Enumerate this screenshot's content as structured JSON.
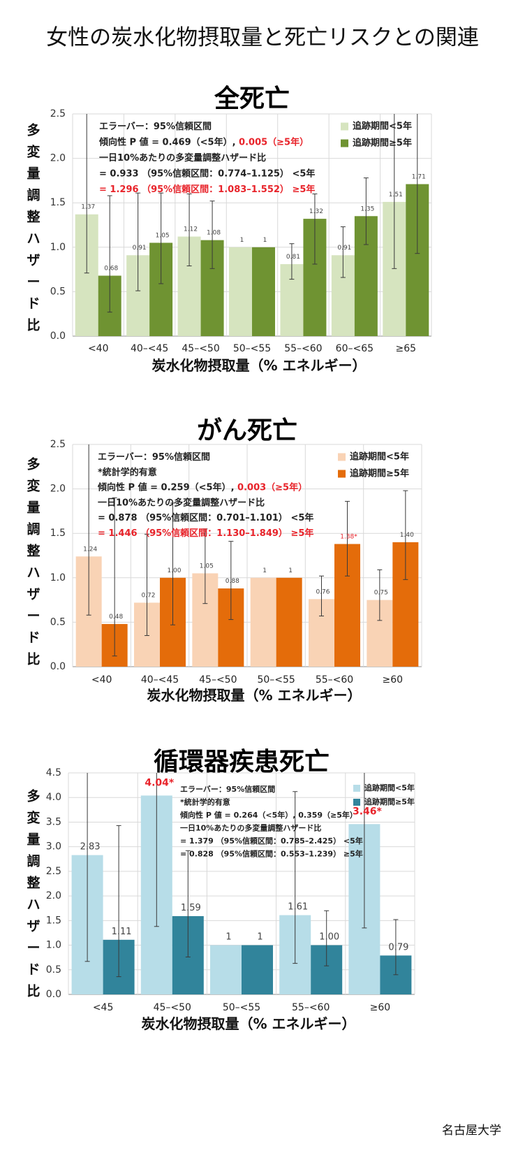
{
  "page_title": "女性の炭水化物摂取量と死亡リスクとの関連",
  "credit": "名古屋大学",
  "chart_data": [
    {
      "type": "bar",
      "title": "全死亡",
      "ylabel": "多変量調整ハザード比",
      "xlabel": "炭水化物摂取量（% エネルギー）",
      "ylim": [
        0,
        2.5
      ],
      "yticks": [
        "0.0",
        "0.5",
        "1.0",
        "1.5",
        "2.0",
        "2.5"
      ],
      "categories": [
        "<40",
        "40–<45",
        "45–<50",
        "50–<55",
        "55–<60",
        "60–<65",
        "≥65"
      ],
      "series": [
        {
          "name": "追跡期間<5年",
          "color": "#d6e4bf",
          "values": [
            1.37,
            0.91,
            1.12,
            1,
            0.81,
            0.91,
            1.51
          ],
          "labels": [
            "1.37",
            "0.91",
            "1.12",
            "1",
            "0.81",
            "0.91",
            "1.51"
          ],
          "ci_low": [
            0.71,
            0.51,
            0.79,
            1,
            0.64,
            0.66,
            0.76
          ],
          "ci_high": [
            2.55,
            1.61,
            1.6,
            1,
            1.04,
            1.23,
            2.55
          ]
        },
        {
          "name": "追跡期間≥5年",
          "color": "#6f9332",
          "values": [
            0.68,
            1.05,
            1.08,
            1,
            1.32,
            1.35,
            1.71
          ],
          "labels": [
            "0.68",
            "1.05",
            "1.08",
            "1",
            "1.32",
            "1.35",
            "1.71"
          ],
          "ci_low": [
            0.27,
            0.59,
            0.76,
            1,
            0.81,
            1.03,
            0.93
          ],
          "ci_high": [
            1.58,
            1.61,
            1.52,
            1,
            1.6,
            1.78,
            2.55
          ]
        }
      ],
      "red_labels": [],
      "legend_position": "top-right",
      "annotations": [
        {
          "parts": [
            {
              "t": "エラーバー：95%信頼区間",
              "red": false
            }
          ]
        },
        {
          "parts": [
            {
              "t": "傾向性 P 値 = 0.469（<5年）, ",
              "red": false
            },
            {
              "t": "0.005（≥5年）",
              "red": true
            }
          ]
        },
        {
          "parts": [
            {
              "t": "一日10%あたりの多変量調整ハザード比",
              "red": false
            }
          ]
        },
        {
          "parts": [
            {
              "t": "= 0.933 （95%信頼区間：0.774–1.125） <5年",
              "red": false
            }
          ]
        },
        {
          "parts": [
            {
              "t": "= 1.296 （95%信頼区間：1.083–1.552） ≥5年",
              "red": true
            }
          ]
        }
      ]
    },
    {
      "type": "bar",
      "title": "がん死亡",
      "ylabel": "多変量調整ハザード比",
      "xlabel": "炭水化物摂取量（% エネルギー）",
      "ylim": [
        0,
        2.5
      ],
      "yticks": [
        "0.0",
        "0.5",
        "1.0",
        "1.5",
        "2.0",
        "2.5"
      ],
      "categories": [
        "<40",
        "40–<45",
        "45–<50",
        "50–<55",
        "55–<60",
        "≥60"
      ],
      "series": [
        {
          "name": "追跡期間<5年",
          "color": "#f9d3b5",
          "values": [
            1.24,
            0.72,
            1.05,
            1,
            0.76,
            0.75
          ],
          "labels": [
            "1.24",
            "0.72",
            "1.05",
            "1",
            "0.76",
            "0.75"
          ],
          "ci_low": [
            0.58,
            0.35,
            0.71,
            1,
            0.57,
            0.52
          ],
          "ci_high": [
            2.55,
            1.49,
            1.55,
            1,
            1.02,
            1.09
          ]
        },
        {
          "name": "追跡期間≥5年",
          "color": "#e46c0a",
          "values": [
            0.48,
            1.0,
            0.88,
            1,
            1.38,
            1.4
          ],
          "labels": [
            "0.48",
            "1.00",
            "0.88",
            "1",
            "1.38*",
            "1.40"
          ],
          "ci_low": [
            0.12,
            0.47,
            0.53,
            1,
            1.02,
            0.98
          ],
          "ci_high": [
            1.9,
            1.84,
            1.41,
            1,
            1.86,
            1.98
          ]
        }
      ],
      "red_labels": [
        [
          1,
          4
        ]
      ],
      "legend_position": "top-right",
      "annotations": [
        {
          "parts": [
            {
              "t": "エラーバー：95%信頼区間",
              "red": false
            }
          ]
        },
        {
          "parts": [
            {
              "t": "*統計学的有意",
              "red": false
            }
          ]
        },
        {
          "parts": [
            {
              "t": "傾向性 P 値 = 0.259（<5年）, ",
              "red": false
            },
            {
              "t": "0.003（≥5年）",
              "red": true
            }
          ]
        },
        {
          "parts": [
            {
              "t": "一日10%あたりの多変量調整ハザード比",
              "red": false
            }
          ]
        },
        {
          "parts": [
            {
              "t": "= 0.878 （95%信頼区間：0.701–1.101） <5年",
              "red": false
            }
          ]
        },
        {
          "parts": [
            {
              "t": "= 1.446 （95%信頼区間：1.130–1.849） ≥5年",
              "red": true
            }
          ]
        }
      ]
    },
    {
      "type": "bar",
      "title": "循環器疾患死亡",
      "ylabel": "多変量調整ハザード比",
      "xlabel": "炭水化物摂取量（% エネルギー）",
      "ylim": [
        0,
        4.5
      ],
      "yticks": [
        "0.0",
        "0.5",
        "1.0",
        "1.5",
        "2.0",
        "2.5",
        "3.0",
        "3.5",
        "4.0",
        "4.5"
      ],
      "categories": [
        "<45",
        "45–<50",
        "50–<55",
        "55–<60",
        "≥60"
      ],
      "series": [
        {
          "name": "追跡期間<5年",
          "color": "#b7dde8",
          "values": [
            2.83,
            4.04,
            1,
            1.61,
            3.46
          ],
          "labels": [
            "2.83",
            "4.04*",
            "1",
            "1.61",
            "3.46*"
          ],
          "ci_low": [
            0.67,
            1.38,
            1,
            0.63,
            1.35
          ],
          "ci_high": [
            4.55,
            4.55,
            1,
            4.12,
            4.55
          ]
        },
        {
          "name": "追跡期間≥5年",
          "color": "#31849b",
          "values": [
            1.11,
            1.59,
            1,
            1.0,
            0.79
          ],
          "labels": [
            "1.11",
            "1.59",
            "1",
            "1.00",
            "0.79"
          ],
          "ci_low": [
            0.36,
            0.76,
            1,
            0.58,
            0.4
          ],
          "ci_high": [
            3.43,
            2.92,
            1,
            1.7,
            1.52
          ]
        }
      ],
      "red_labels": [
        [
          0,
          1
        ],
        [
          0,
          4
        ]
      ],
      "legend_position": "top-right",
      "annotations": [
        {
          "parts": [
            {
              "t": "エラーバー：95%信頼区間",
              "red": false
            }
          ]
        },
        {
          "parts": [
            {
              "t": "*統計学的有意",
              "red": false
            }
          ]
        },
        {
          "parts": [
            {
              "t": "傾向性 P 値 = 0.264（<5年）, 0.359（≥5年）",
              "red": false
            }
          ]
        },
        {
          "parts": [
            {
              "t": "一日10%あたりの多変量調整ハザード比",
              "red": false
            }
          ]
        },
        {
          "parts": [
            {
              "t": "= 1.379 （95%信頼区間：0.785–2.425） <5年",
              "red": false
            }
          ]
        },
        {
          "parts": [
            {
              "t": "= 0.828 （95%信頼区間：0.553–1.239） ≥5年",
              "red": false
            }
          ]
        }
      ]
    }
  ]
}
